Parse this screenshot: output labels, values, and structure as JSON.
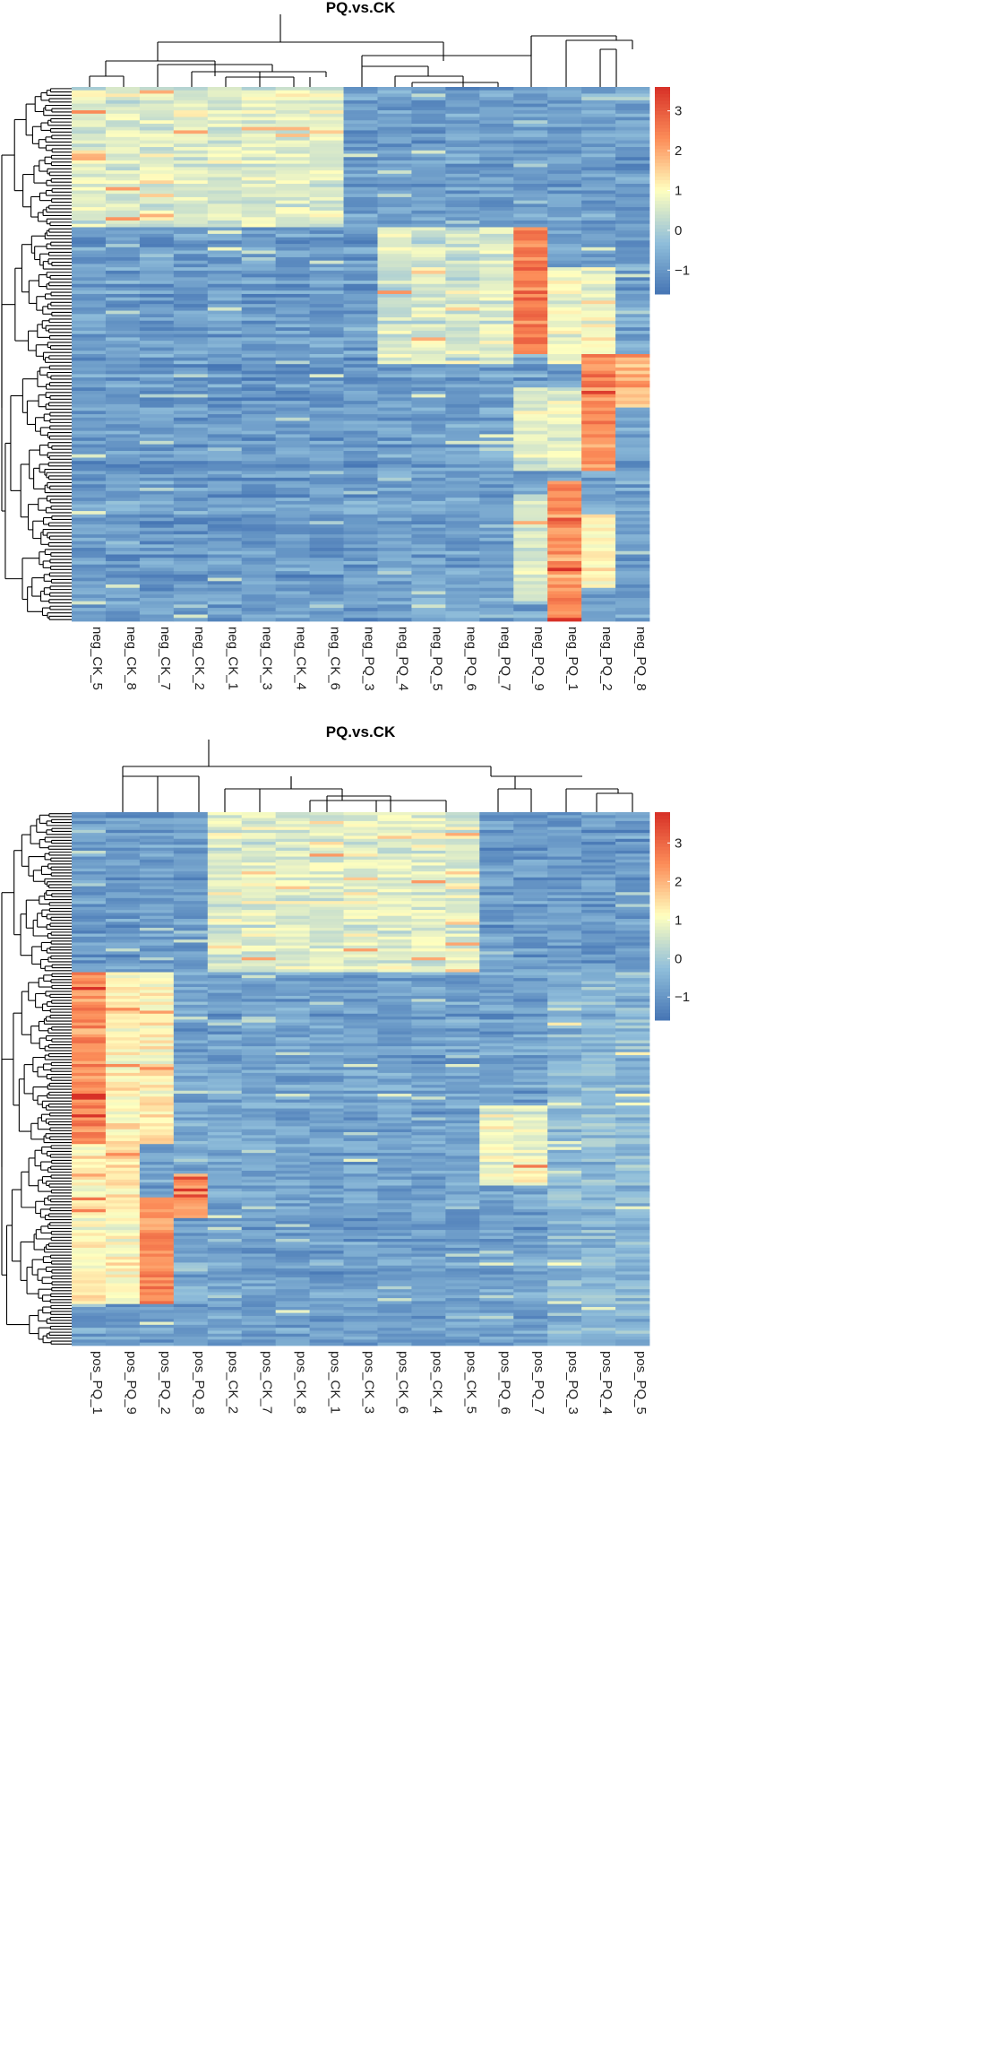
{
  "chart_data": [
    {
      "type": "heatmap",
      "title": "PQ.vs.CK",
      "columns": [
        "neg_CK_5",
        "neg_CK_8",
        "neg_CK_7",
        "neg_CK_2",
        "neg_CK_1",
        "neg_CK_3",
        "neg_CK_4",
        "neg_CK_6",
        "neg_PQ_3",
        "neg_PQ_4",
        "neg_PQ_5",
        "neg_PQ_6",
        "neg_PQ_7",
        "neg_PQ_9",
        "neg_PQ_1",
        "neg_PQ_2",
        "neg_PQ_8"
      ],
      "row_count": 160,
      "value_range": [
        -1.6,
        3.6
      ],
      "legend_ticks": [
        "3",
        "2",
        "1",
        "0",
        "−1"
      ],
      "legend_tick_values": [
        3,
        2,
        1,
        0,
        -1
      ],
      "row_dendrogram_splits": [
        0.26,
        0.52,
        0.86
      ],
      "column_dendrogram": "((CK_5,CK_8),(CK_7,CK_2,CK_1,CK_3,CK_4,CK_6)),((PQ_3,PQ_4,PQ_5,PQ_6,PQ_7),(PQ_9,(PQ_1,(PQ_2,PQ_8))))",
      "blocks": [
        {
          "rows": [
            0.0,
            0.26
          ],
          "cols": [
            0,
            7
          ],
          "value": 0.6
        },
        {
          "rows": [
            0.0,
            0.26
          ],
          "cols": [
            8,
            16
          ],
          "value": -0.9
        },
        {
          "rows": [
            0.26,
            1.0
          ],
          "cols": [
            0,
            8
          ],
          "value": -0.9
        },
        {
          "rows": [
            0.26,
            0.52
          ],
          "cols": [
            9,
            12
          ],
          "value": 0.5
        },
        {
          "rows": [
            0.26,
            0.5
          ],
          "cols": [
            13,
            13
          ],
          "value": 2.6
        },
        {
          "rows": [
            0.34,
            0.52
          ],
          "cols": [
            14,
            15
          ],
          "value": 0.8
        },
        {
          "rows": [
            0.5,
            0.72
          ],
          "cols": [
            15,
            15
          ],
          "value": 2.4
        },
        {
          "rows": [
            0.5,
            0.6
          ],
          "cols": [
            16,
            16
          ],
          "value": 2.0
        },
        {
          "rows": [
            0.56,
            0.72
          ],
          "cols": [
            13,
            14
          ],
          "value": 0.7
        },
        {
          "rows": [
            0.74,
            1.0
          ],
          "cols": [
            14,
            14
          ],
          "value": 2.2
        },
        {
          "rows": [
            0.76,
            0.96
          ],
          "cols": [
            13,
            13
          ],
          "value": 0.6
        },
        {
          "rows": [
            0.8,
            0.94
          ],
          "cols": [
            15,
            15
          ],
          "value": 1.2
        }
      ]
    },
    {
      "type": "heatmap",
      "title": "PQ.vs.CK",
      "columns": [
        "pos_PQ_1",
        "pos_PQ_9",
        "pos_PQ_2",
        "pos_PQ_8",
        "pos_CK_2",
        "pos_CK_7",
        "pos_CK_8",
        "pos_CK_1",
        "pos_CK_3",
        "pos_CK_6",
        "pos_CK_4",
        "pos_CK_5",
        "pos_PQ_6",
        "pos_PQ_7",
        "pos_PQ_3",
        "pos_PQ_4",
        "pos_PQ_5"
      ],
      "row_count": 180,
      "value_range": [
        -1.6,
        3.8
      ],
      "legend_ticks": [
        "3",
        "2",
        "1",
        "0",
        "−1"
      ],
      "legend_tick_values": [
        3,
        2,
        1,
        0,
        -1
      ],
      "row_dendrogram_splits": [
        0.3,
        0.62,
        0.92
      ],
      "column_dendrogram": "((PQ_1,(PQ_9,(PQ_2,PQ_8))),((CK_2,CK_7),(CK_8,CK_1,CK_3,CK_6,CK_4,CK_5))),((PQ_6,PQ_7),(PQ_3,(PQ_4,PQ_5)))",
      "blocks": [
        {
          "rows": [
            0.0,
            0.3
          ],
          "cols": [
            0,
            3
          ],
          "value": -0.9
        },
        {
          "rows": [
            0.0,
            0.3
          ],
          "cols": [
            4,
            11
          ],
          "value": 0.7
        },
        {
          "rows": [
            0.0,
            0.3
          ],
          "cols": [
            12,
            16
          ],
          "value": -0.9
        },
        {
          "rows": [
            0.3,
            1.0
          ],
          "cols": [
            4,
            11
          ],
          "value": -0.8
        },
        {
          "rows": [
            0.3,
            0.62
          ],
          "cols": [
            0,
            0
          ],
          "value": 2.4
        },
        {
          "rows": [
            0.3,
            0.62
          ],
          "cols": [
            1,
            2
          ],
          "value": 1.2
        },
        {
          "rows": [
            0.62,
            0.92
          ],
          "cols": [
            0,
            1
          ],
          "value": 1.2
        },
        {
          "rows": [
            0.72,
            0.92
          ],
          "cols": [
            2,
            2
          ],
          "value": 2.5
        },
        {
          "rows": [
            0.68,
            0.76
          ],
          "cols": [
            3,
            3
          ],
          "value": 2.2
        },
        {
          "rows": [
            0.55,
            0.7
          ],
          "cols": [
            12,
            13
          ],
          "value": 0.9
        },
        {
          "rows": [
            0.3,
            1.0
          ],
          "cols": [
            14,
            16
          ],
          "value": -0.4
        }
      ]
    }
  ]
}
